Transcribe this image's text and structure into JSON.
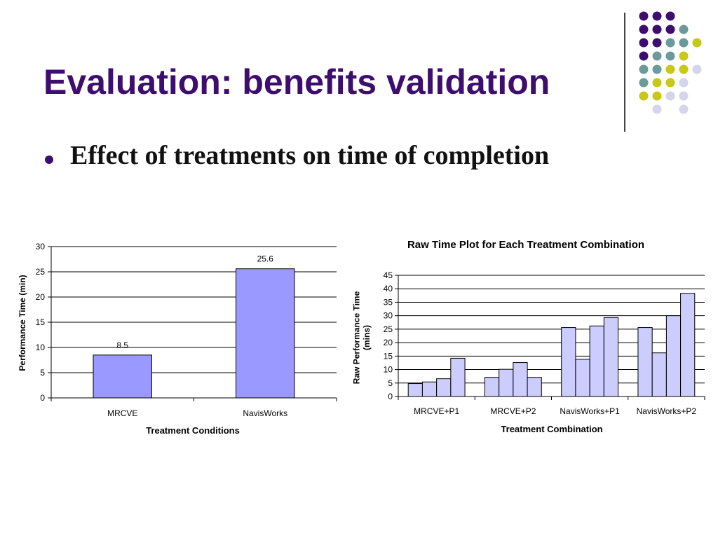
{
  "slide": {
    "title": "Evaluation: benefits validation",
    "bullet": "Effect of treatments on time of completion",
    "colors": {
      "title": "#3d0e6e",
      "dot_purple": "#3d0e6e",
      "dot_teal": "#6a9a9a",
      "dot_yellow": "#c8c818",
      "dot_lavender": "#d4d4ea"
    }
  },
  "decor": {
    "dot_rows": [
      [
        "purple",
        "purple",
        "purple",
        null,
        null
      ],
      [
        "purple",
        "purple",
        "purple",
        "teal",
        null
      ],
      [
        "purple",
        "purple",
        "teal",
        "teal",
        "yellow"
      ],
      [
        "purple",
        "teal",
        "teal",
        "yellow",
        null
      ],
      [
        "teal",
        "teal",
        "yellow",
        "yellow",
        "lavender"
      ],
      [
        "teal",
        "yellow",
        "yellow",
        "lavender",
        null
      ],
      [
        "yellow",
        "yellow",
        "lavender",
        "lavender",
        null
      ],
      [
        null,
        "lavender",
        null,
        "lavender",
        null
      ]
    ]
  },
  "chart_data": [
    {
      "type": "bar",
      "title": "",
      "xlabel": "Treatment Conditions",
      "ylabel": "Performance Time (min)",
      "categories": [
        "MRCVE",
        "NavisWorks"
      ],
      "values": [
        8.5,
        25.6
      ],
      "data_labels": [
        "8.5",
        "25.6"
      ],
      "ylim": [
        0,
        30
      ],
      "yticks": [
        0,
        5,
        10,
        15,
        20,
        25,
        30
      ],
      "grid": true,
      "legend": "none",
      "bar_color": "#9999ff"
    },
    {
      "type": "bar",
      "title": "Raw Time Plot for Each Treatment Combination",
      "xlabel": "Treatment Combination",
      "ylabel": "Raw Performance Time (mins)",
      "categories": [
        "MRCVE+P1",
        "MRCVE+P2",
        "NavisWorks+P1",
        "NavisWorks+P2"
      ],
      "values": [
        [
          4.8,
          5.4,
          6.6,
          14.2
        ],
        [
          7.1,
          10.1,
          12.6,
          7.1
        ],
        [
          25.6,
          13.8,
          26.2,
          29.3
        ],
        [
          25.6,
          16.2,
          30.0,
          38.3
        ]
      ],
      "ylim": [
        0,
        45
      ],
      "yticks": [
        0,
        5,
        10,
        15,
        20,
        25,
        30,
        35,
        40,
        45
      ],
      "grid": true,
      "legend": "none",
      "bar_color": "#ccccff"
    }
  ]
}
